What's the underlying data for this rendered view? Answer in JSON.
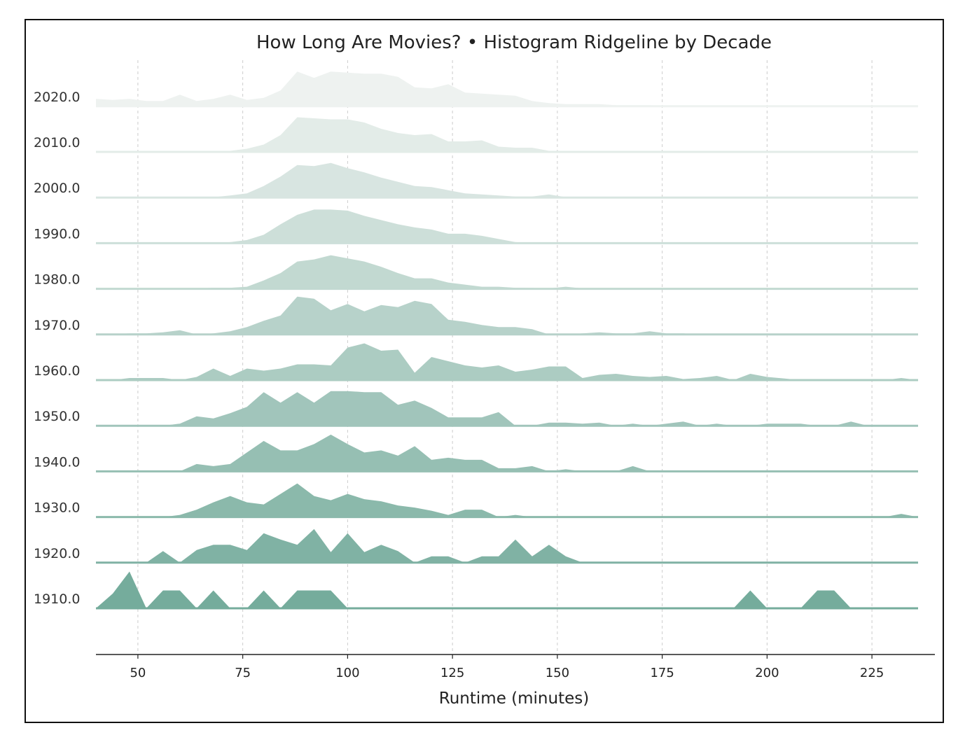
{
  "chart_data": {
    "type": "area",
    "title": "How Long Are Movies?  •  Histogram Ridgeline by Decade",
    "xlabel": "Runtime (minutes)",
    "ylabel": "",
    "xlim": [
      40,
      236
    ],
    "x_ticks": [
      50,
      75,
      100,
      125,
      150,
      175,
      200,
      225
    ],
    "grid": "vertical dashed at x ticks",
    "bin_start": 40,
    "bin_width": 4,
    "color_bottom": "#75ac9c",
    "color_top": "#eef2f0",
    "series": [
      {
        "name": "1910.0",
        "values": [
          0,
          0.7,
          1.75,
          0,
          0.85,
          0.85,
          0,
          0.85,
          0,
          0,
          0.85,
          0,
          0.85,
          0.85,
          0.85,
          0,
          0,
          0,
          0,
          0,
          0,
          0,
          0,
          0,
          0,
          0,
          0,
          0,
          0,
          0,
          0,
          0,
          0,
          0,
          0,
          0,
          0,
          0,
          0,
          0.85,
          0,
          0,
          0,
          0.85,
          0.85,
          0,
          0,
          0,
          0,
          0
        ]
      },
      {
        "name": "1920.0",
        "values": [
          0,
          0,
          0,
          0,
          0.55,
          0,
          0.6,
          0.85,
          0.85,
          0.6,
          1.4,
          1.1,
          0.85,
          1.6,
          0.5,
          1.4,
          0.5,
          0.85,
          0.55,
          0,
          0.3,
          0.3,
          0,
          0.3,
          0.3,
          1.1,
          0.3,
          0.85,
          0.3,
          0,
          0,
          0,
          0,
          0,
          0,
          0,
          0,
          0,
          0,
          0,
          0,
          0,
          0,
          0,
          0,
          0,
          0,
          0,
          0,
          0
        ]
      },
      {
        "name": "1930.0",
        "values": [
          0,
          0,
          0,
          0,
          0,
          0.1,
          0.35,
          0.7,
          1.0,
          0.7,
          0.6,
          1.1,
          1.6,
          1.0,
          0.8,
          1.1,
          0.85,
          0.75,
          0.55,
          0.45,
          0.3,
          0.1,
          0.35,
          0.35,
          0,
          0.1,
          0,
          0,
          0,
          0,
          0,
          0,
          0,
          0,
          0,
          0,
          0,
          0,
          0,
          0,
          0,
          0,
          0,
          0,
          0,
          0,
          0,
          0,
          0.15,
          0
        ]
      },
      {
        "name": "1940.0",
        "values": [
          0,
          0,
          0,
          0,
          0,
          0,
          0.35,
          0.25,
          0.35,
          0.9,
          1.45,
          1.0,
          1.0,
          1.3,
          1.75,
          1.3,
          0.9,
          1.0,
          0.75,
          1.2,
          0.55,
          0.65,
          0.55,
          0.55,
          0.15,
          0.15,
          0.25,
          0,
          0.1,
          0,
          0,
          0,
          0.25,
          0,
          0,
          0,
          0,
          0,
          0,
          0,
          0,
          0,
          0,
          0,
          0,
          0,
          0,
          0,
          0,
          0
        ]
      },
      {
        "name": "1950.0",
        "values": [
          0,
          0,
          0,
          0,
          0,
          0.1,
          0.45,
          0.35,
          0.6,
          0.9,
          1.6,
          1.1,
          1.6,
          1.1,
          1.65,
          1.65,
          1.6,
          1.6,
          1.0,
          1.2,
          0.85,
          0.4,
          0.4,
          0.4,
          0.65,
          0,
          0,
          0.15,
          0.15,
          0.1,
          0.15,
          0,
          0.1,
          0,
          0.1,
          0.2,
          0,
          0.1,
          0,
          0,
          0.1,
          0.1,
          0.1,
          0,
          0,
          0.2,
          0,
          0,
          0,
          0
        ]
      },
      {
        "name": "1960.0",
        "values": [
          0,
          0,
          0.1,
          0.1,
          0.1,
          0,
          0.15,
          0.55,
          0.2,
          0.55,
          0.45,
          0.55,
          0.75,
          0.75,
          0.7,
          1.55,
          1.75,
          1.4,
          1.45,
          0.35,
          1.1,
          0.9,
          0.7,
          0.6,
          0.7,
          0.4,
          0.5,
          0.65,
          0.65,
          0.1,
          0.25,
          0.3,
          0.2,
          0.15,
          0.2,
          0.05,
          0.1,
          0.2,
          0,
          0.3,
          0.15,
          0.08,
          0,
          0,
          0,
          0,
          0,
          0,
          0.1,
          0
        ]
      },
      {
        "name": "1970.0",
        "values": [
          0,
          0.02,
          0.05,
          0.05,
          0.1,
          0.2,
          0,
          0.05,
          0.15,
          0.35,
          0.65,
          0.9,
          1.8,
          1.7,
          1.15,
          1.45,
          1.1,
          1.4,
          1.3,
          1.6,
          1.45,
          0.7,
          0.6,
          0.45,
          0.35,
          0.35,
          0.25,
          0,
          0,
          0.05,
          0.1,
          0.05,
          0.05,
          0.15,
          0.05,
          0.05,
          0,
          0,
          0,
          0.02,
          0.02,
          0.02,
          0,
          0,
          0,
          0.02,
          0.02,
          0,
          0,
          0
        ]
      },
      {
        "name": "1980.0",
        "values": [
          0.05,
          0,
          0,
          0,
          0,
          0,
          0.01,
          0.05,
          0.05,
          0.1,
          0.4,
          0.75,
          1.3,
          1.4,
          1.6,
          1.45,
          1.3,
          1.05,
          0.75,
          0.5,
          0.5,
          0.3,
          0.2,
          0.1,
          0.1,
          0.05,
          0.04,
          0.02,
          0.1,
          0.02,
          0.02,
          0,
          0,
          0,
          0.02,
          0,
          0,
          0.02,
          0.01,
          0,
          0,
          0,
          0,
          0,
          0,
          0,
          0,
          0,
          0,
          0
        ]
      },
      {
        "name": "1990.0",
        "values": [
          0.02,
          0.02,
          0.02,
          0.01,
          0.01,
          0.01,
          0.01,
          0.01,
          0.05,
          0.15,
          0.4,
          0.9,
          1.35,
          1.6,
          1.6,
          1.55,
          1.3,
          1.1,
          0.9,
          0.75,
          0.65,
          0.45,
          0.45,
          0.35,
          0.2,
          0.05,
          0.02,
          0.02,
          0.02,
          0.02,
          0.02,
          0.02,
          0.02,
          0.02,
          0.02,
          0.01,
          0.01,
          0.01,
          0.01,
          0.01,
          0.01,
          0.01,
          0,
          0,
          0,
          0,
          0,
          0,
          0,
          0
        ]
      },
      {
        "name": "2000.0",
        "values": [
          0,
          0,
          0,
          0,
          0,
          0.02,
          0.02,
          0.02,
          0.1,
          0.2,
          0.55,
          1.0,
          1.55,
          1.5,
          1.65,
          1.4,
          1.2,
          0.95,
          0.75,
          0.55,
          0.5,
          0.35,
          0.2,
          0.15,
          0.1,
          0.05,
          0.05,
          0.15,
          0.02,
          0.02,
          0,
          0.02,
          0,
          0.02,
          0,
          0,
          0,
          0,
          0,
          0,
          0,
          0,
          0,
          0,
          0,
          0,
          0,
          0,
          0,
          0
        ]
      },
      {
        "name": "2010.0",
        "values": [
          0,
          0,
          0,
          0,
          0,
          0,
          0,
          0,
          0.05,
          0.15,
          0.35,
          0.8,
          1.65,
          1.6,
          1.55,
          1.55,
          1.4,
          1.1,
          0.9,
          0.8,
          0.85,
          0.5,
          0.5,
          0.55,
          0.25,
          0.2,
          0.2,
          0.05,
          0.05,
          0.05,
          0.02,
          0.02,
          0.02,
          0,
          0,
          0,
          0,
          0,
          0,
          0,
          0,
          0,
          0,
          0,
          0,
          0,
          0,
          0,
          0,
          0
        ]
      },
      {
        "name": "2020.0",
        "values": [
          0.35,
          0.3,
          0.35,
          0.25,
          0.25,
          0.55,
          0.25,
          0.35,
          0.55,
          0.3,
          0.4,
          0.75,
          1.65,
          1.35,
          1.65,
          1.6,
          1.55,
          1.55,
          1.4,
          0.9,
          0.85,
          1.05,
          0.65,
          0.6,
          0.55,
          0.5,
          0.25,
          0.15,
          0.1,
          0.1,
          0.1,
          0.05,
          0.05,
          0.05,
          0.02,
          0.02,
          0.02,
          0.02,
          0,
          0,
          0,
          0,
          0,
          0,
          0,
          0,
          0,
          0,
          0,
          0
        ]
      }
    ]
  }
}
